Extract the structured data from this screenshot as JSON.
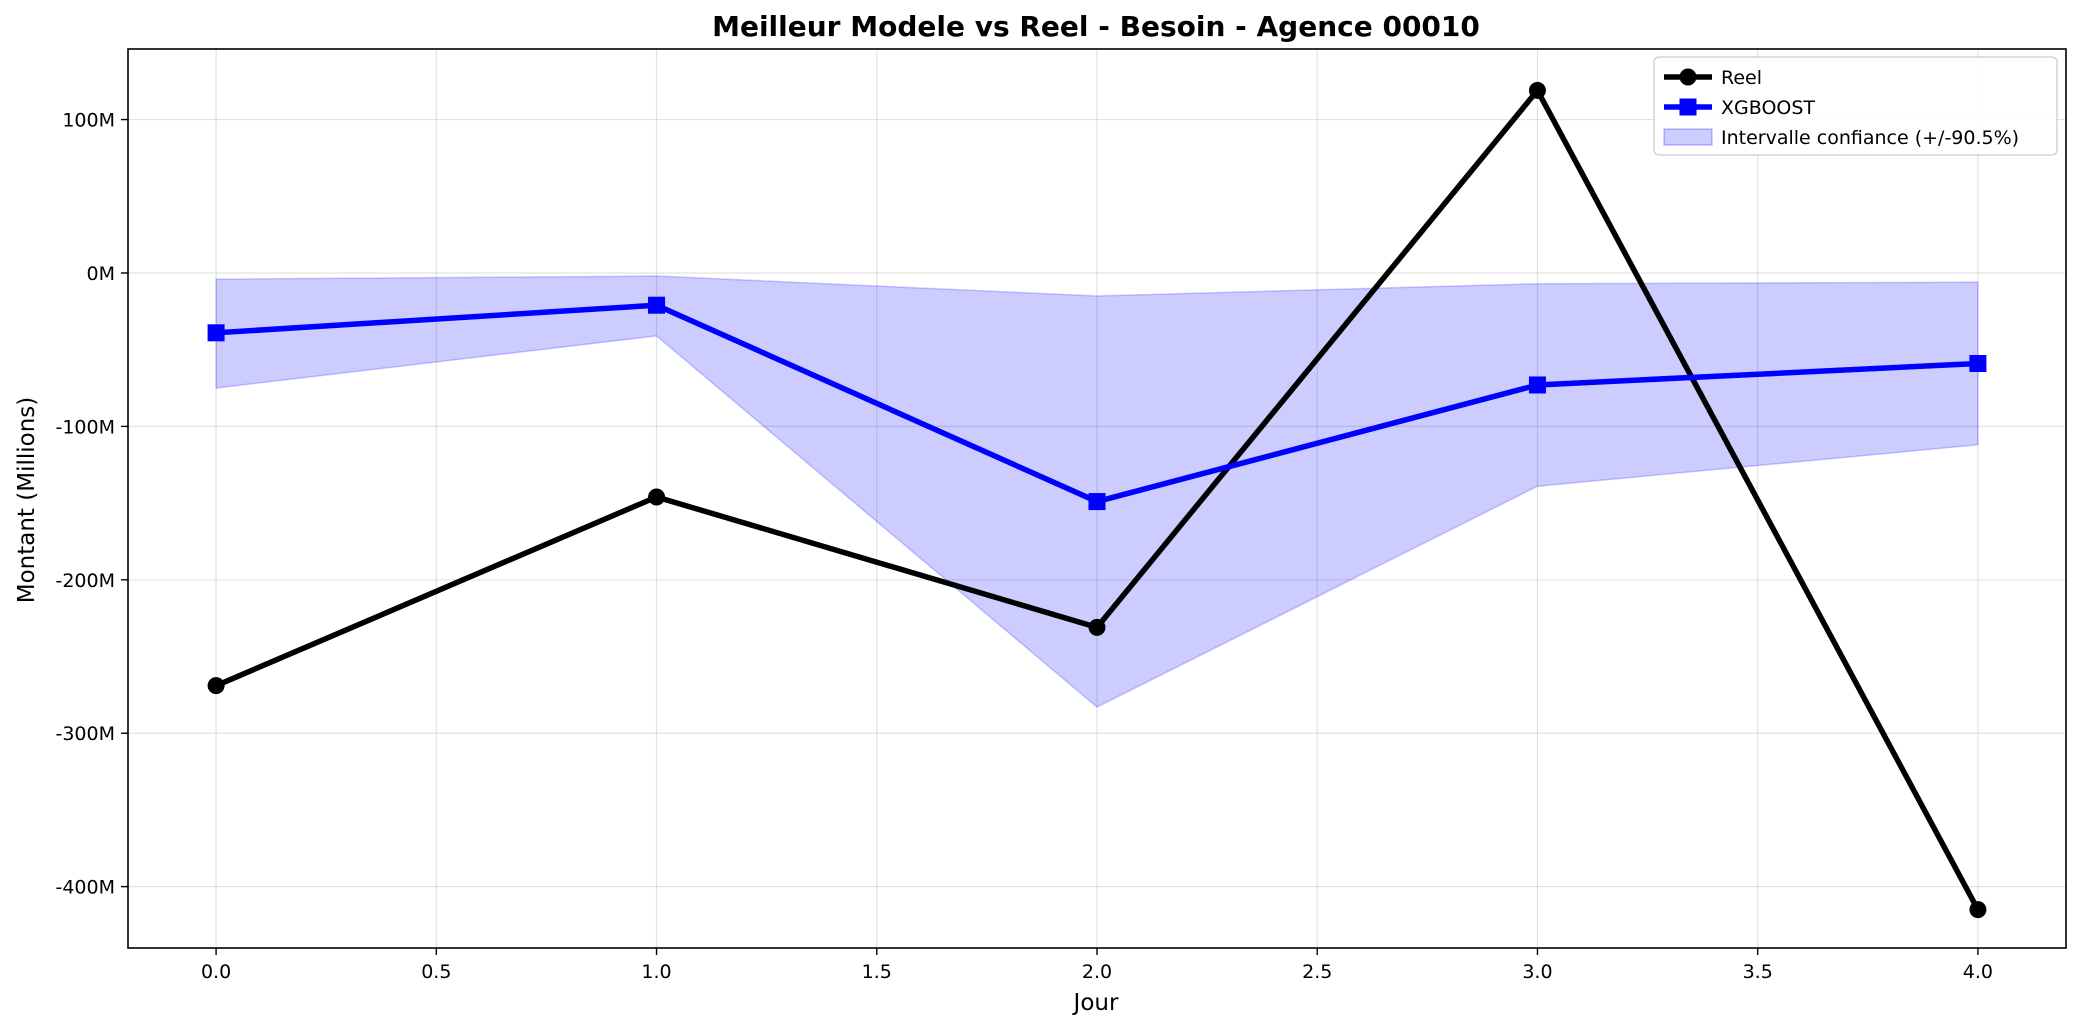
{
  "chart_data": {
    "type": "line",
    "title": "Meilleur Modele vs Reel - Besoin - Agence 00010",
    "xlabel": "Jour",
    "ylabel": "Montant (Millions)",
    "x": [
      0,
      1,
      2,
      3,
      4
    ],
    "xlim": [
      -0.2,
      4.2
    ],
    "ylim": [
      -440,
      146
    ],
    "xticks": [
      0.0,
      0.5,
      1.0,
      1.5,
      2.0,
      2.5,
      3.0,
      3.5,
      4.0
    ],
    "xtick_labels": [
      "0.0",
      "0.5",
      "1.0",
      "1.5",
      "2.0",
      "2.5",
      "3.0",
      "3.5",
      "4.0"
    ],
    "yticks": [
      100,
      0,
      -100,
      -200,
      -300,
      -400
    ],
    "ytick_labels": [
      "100M",
      "0M",
      "-100M",
      "-200M",
      "-300M",
      "-400M"
    ],
    "grid": true,
    "legend_position": "top-right",
    "series": [
      {
        "name": "Reel",
        "values": [
          -269,
          -146,
          -231,
          119,
          -415
        ],
        "color": "#000000",
        "marker": "circle"
      },
      {
        "name": "XGBOOST",
        "values": [
          -39,
          -21,
          -149,
          -73,
          -59
        ],
        "color": "#0000ff",
        "marker": "square"
      }
    ],
    "band": {
      "name": "Intervalle confiance (+/-90.5%)",
      "lower": [
        -75,
        -41,
        -283,
        -139,
        -112
      ],
      "upper": [
        -4,
        -2,
        -15,
        -7,
        -6
      ],
      "color": "#0000ff",
      "opacity": 0.2
    }
  }
}
